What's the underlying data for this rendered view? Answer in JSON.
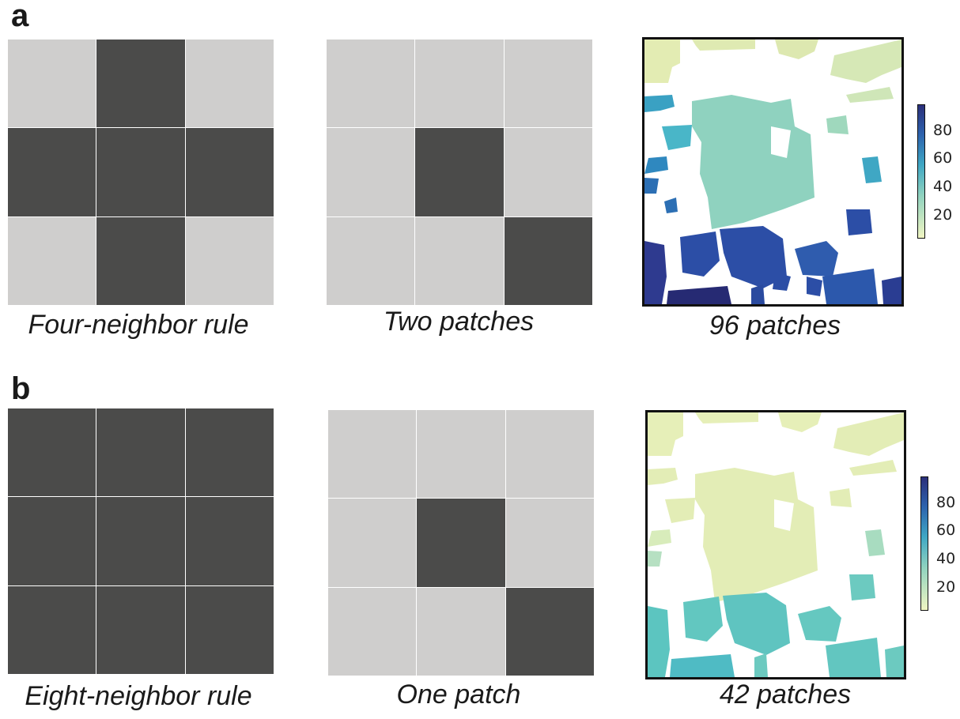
{
  "colors": {
    "dark": "#4b4b4a",
    "light": "#cfcecd",
    "cbar_top": "#2b2f7a",
    "cbar_mid": "#3fa7c4",
    "cbar_bottom": "#f0f5c2"
  },
  "rows": [
    {
      "letter": "a",
      "rule_grid": [
        "light",
        "dark",
        "light",
        "dark",
        "dark",
        "dark",
        "light",
        "dark",
        "light"
      ],
      "rule_caption": "Four-neighbor rule",
      "example_grid": [
        "light",
        "light",
        "light",
        "light",
        "dark",
        "light",
        "light",
        "light",
        "dark"
      ],
      "example_caption": "Two patches",
      "map_caption": "96 patches",
      "colorbar_ticks": [
        "80",
        "60",
        "40",
        "20"
      ]
    },
    {
      "letter": "b",
      "rule_grid": [
        "dark",
        "dark",
        "dark",
        "dark",
        "dark",
        "dark",
        "dark",
        "dark",
        "dark"
      ],
      "rule_caption": "Eight-neighbor rule",
      "example_grid": [
        "light",
        "light",
        "light",
        "light",
        "dark",
        "light",
        "light",
        "light",
        "dark"
      ],
      "example_caption": "One patch",
      "map_caption": "42 patches",
      "colorbar_ticks": [
        "80",
        "60",
        "40",
        "20"
      ]
    }
  ]
}
